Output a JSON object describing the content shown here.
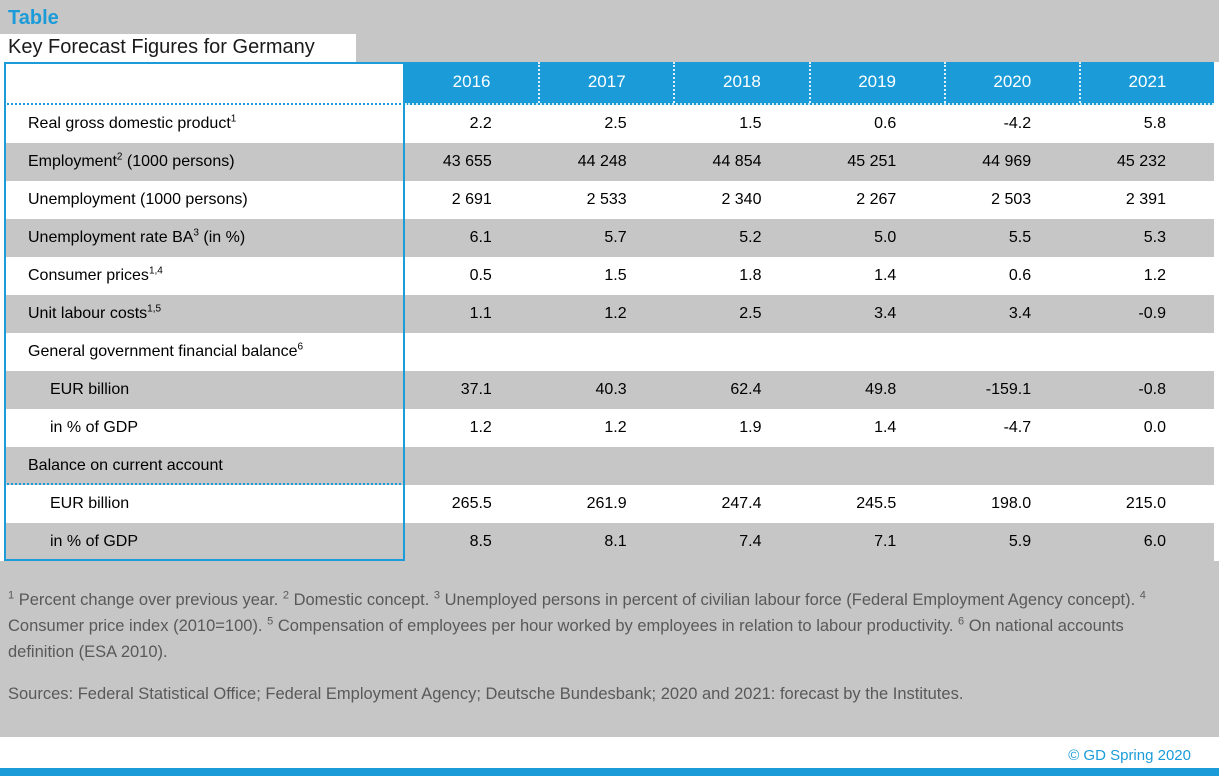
{
  "page": {
    "kicker": "Table",
    "title": "Key Forecast Figures for Germany",
    "sources": "Sources: Federal Statistical Office; Federal Employment Agency; Deutsche Bundesbank; 2020 and 2021: forecast by the Institutes.",
    "copyright": "© GD Spring 2020"
  },
  "colors": {
    "accent_blue": "#1B9CD9",
    "band_gray": "#C6C6C6",
    "header_text": "#FFFFFF",
    "footnote_text": "#595959"
  },
  "chart_data": {
    "type": "table",
    "title": "Table",
    "subtitle": "Key Forecast Figures for Germany",
    "columns": [
      "2016",
      "2017",
      "2018",
      "2019",
      "2020",
      "2021"
    ],
    "rows": [
      {
        "label": "Real gross domestic product",
        "sup": "1",
        "suffix": "",
        "indent": false,
        "divider_below": false,
        "values": [
          "2.2",
          "2.5",
          "1.5",
          "0.6",
          "-4.2",
          "5.8"
        ]
      },
      {
        "label": "Employment",
        "sup": "2",
        "suffix": " (1000 persons)",
        "indent": false,
        "divider_below": false,
        "values": [
          "43 655",
          "44 248",
          "44 854",
          "45 251",
          "44 969",
          "45 232"
        ]
      },
      {
        "label": "Unemployment (1000 persons)",
        "sup": "",
        "suffix": "",
        "indent": false,
        "divider_below": false,
        "values": [
          "2 691",
          "2 533",
          "2 340",
          "2 267",
          "2 503",
          "2 391"
        ]
      },
      {
        "label": "Unemployment rate BA",
        "sup": "3",
        "suffix": " (in %)",
        "indent": false,
        "divider_below": false,
        "values": [
          "6.1",
          "5.7",
          "5.2",
          "5.0",
          "5.5",
          "5.3"
        ]
      },
      {
        "label": "Consumer prices",
        "sup": "1,4",
        "suffix": "",
        "indent": false,
        "divider_below": false,
        "values": [
          "0.5",
          "1.5",
          "1.8",
          "1.4",
          "0.6",
          "1.2"
        ]
      },
      {
        "label": "Unit labour costs",
        "sup": "1,5",
        "suffix": "",
        "indent": false,
        "divider_below": false,
        "values": [
          "1.1",
          "1.2",
          "2.5",
          "3.4",
          "3.4",
          "-0.9"
        ]
      },
      {
        "label": "General government financial balance",
        "sup": "6",
        "suffix": "",
        "indent": false,
        "divider_below": false,
        "values": [
          "",
          "",
          "",
          "",
          "",
          ""
        ]
      },
      {
        "label": "EUR billion",
        "sup": "",
        "suffix": "",
        "indent": true,
        "divider_below": false,
        "values": [
          "37.1",
          "40.3",
          "62.4",
          "49.8",
          "-159.1",
          "-0.8"
        ]
      },
      {
        "label": "in % of GDP",
        "sup": "",
        "suffix": "",
        "indent": true,
        "divider_below": false,
        "values": [
          "1.2",
          "1.2",
          "1.9",
          "1.4",
          "-4.7",
          "0.0"
        ]
      },
      {
        "label": "Balance on current account",
        "sup": "",
        "suffix": "",
        "indent": false,
        "divider_below": true,
        "values": [
          "",
          "",
          "",
          "",
          "",
          ""
        ]
      },
      {
        "label": "EUR billion",
        "sup": "",
        "suffix": "",
        "indent": true,
        "divider_below": false,
        "values": [
          "265.5",
          "261.9",
          "247.4",
          "245.5",
          "198.0",
          "215.0"
        ]
      },
      {
        "label": "in % of GDP",
        "sup": "",
        "suffix": "",
        "indent": true,
        "divider_below": false,
        "values": [
          "8.5",
          "8.1",
          "7.4",
          "7.1",
          "5.9",
          "6.0"
        ]
      }
    ],
    "footnotes": [
      {
        "sup": "1",
        "text": "Percent change over previous year."
      },
      {
        "sup": "2",
        "text": "Domestic concept."
      },
      {
        "sup": "3",
        "text": "Unemployed persons in percent of civilian labour force (Federal Employment Agency concept)."
      },
      {
        "sup": "4",
        "text": "Consumer price index (2010=100)."
      },
      {
        "sup": "5",
        "text": "Compensation of employees per hour worked by employees in relation to labour productivity."
      },
      {
        "sup": "6",
        "text": "On national accounts definition (ESA 2010)."
      }
    ]
  }
}
